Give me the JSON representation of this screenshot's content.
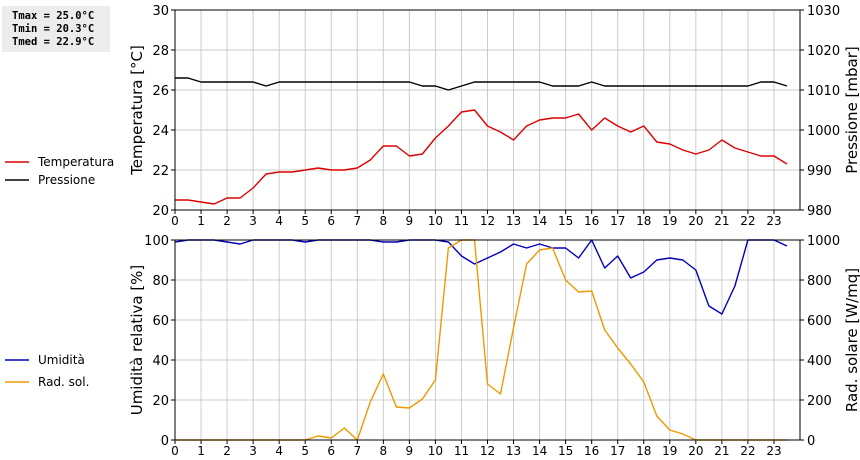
{
  "stats": {
    "tmax": "Tmax = 25.0°C",
    "tmin": "Tmin = 20.3°C",
    "tmed": "Tmed = 22.9°C"
  },
  "colors": {
    "temperature": "#dd0000",
    "pressure": "#000000",
    "humidity": "#0000bb",
    "radiation": "#ee9900",
    "grid": "#cccccc",
    "frame": "#000000"
  },
  "chart_data": [
    {
      "type": "line",
      "x_ticks": [
        "0",
        "1",
        "2",
        "3",
        "4",
        "5",
        "6",
        "7",
        "8",
        "9",
        "10",
        "11",
        "12",
        "13",
        "14",
        "15",
        "16",
        "17",
        "18",
        "19",
        "20",
        "21",
        "22",
        "23"
      ],
      "xlim": [
        0,
        24
      ],
      "ylabel": "Temperatura [°C]",
      "ylim": [
        20,
        30
      ],
      "y_ticks": [
        "20",
        "22",
        "24",
        "26",
        "28",
        "30"
      ],
      "ylabel_right": "Pressione [mbar]",
      "ylim_right": [
        980,
        1030
      ],
      "y_ticks_right": [
        "980",
        "990",
        "1000",
        "1010",
        "1020",
        "1030"
      ],
      "grid": true,
      "legend_position": "left",
      "series": [
        {
          "name": "Temperatura",
          "axis": "left",
          "color": "#dd0000",
          "x": [
            0,
            0.5,
            1,
            1.5,
            2,
            2.5,
            3,
            3.5,
            4,
            4.5,
            5,
            5.5,
            6,
            6.5,
            7,
            7.5,
            8,
            8.5,
            9,
            9.5,
            10,
            10.5,
            11,
            11.5,
            12,
            12.5,
            13,
            13.5,
            14,
            14.5,
            15,
            15.5,
            16,
            16.5,
            17,
            17.5,
            18,
            18.5,
            19,
            19.5,
            20,
            20.5,
            21,
            21.5,
            22,
            22.5,
            23,
            23.5
          ],
          "values": [
            20.5,
            20.5,
            20.4,
            20.3,
            20.6,
            20.6,
            21.1,
            21.8,
            21.9,
            21.9,
            22.0,
            22.1,
            22.0,
            22.0,
            22.1,
            22.5,
            23.2,
            23.2,
            22.7,
            22.8,
            23.6,
            24.2,
            24.9,
            25.0,
            24.2,
            23.9,
            23.5,
            24.2,
            24.5,
            24.6,
            24.6,
            24.8,
            24.0,
            24.6,
            24.2,
            23.9,
            24.2,
            23.4,
            23.3,
            23.0,
            22.8,
            23.0,
            23.5,
            23.1,
            22.9,
            22.7,
            22.7,
            22.3
          ]
        },
        {
          "name": "Pressione",
          "axis": "right",
          "color": "#000000",
          "x": [
            0,
            0.5,
            1,
            1.5,
            2,
            2.5,
            3,
            3.5,
            4,
            4.5,
            5,
            5.5,
            6,
            6.5,
            7,
            7.5,
            8,
            8.5,
            9,
            9.5,
            10,
            10.5,
            11,
            11.5,
            12,
            12.5,
            13,
            13.5,
            14,
            14.5,
            15,
            15.5,
            16,
            16.5,
            17,
            17.5,
            18,
            18.5,
            19,
            19.5,
            20,
            20.5,
            21,
            21.5,
            22,
            22.5,
            23,
            23.5
          ],
          "values": [
            1013,
            1013,
            1012,
            1012,
            1012,
            1012,
            1012,
            1011,
            1012,
            1012,
            1012,
            1012,
            1012,
            1012,
            1012,
            1012,
            1012,
            1012,
            1012,
            1011,
            1011,
            1010,
            1011,
            1012,
            1012,
            1012,
            1012,
            1012,
            1012,
            1011,
            1011,
            1011,
            1012,
            1011,
            1011,
            1011,
            1011,
            1011,
            1011,
            1011,
            1011,
            1011,
            1011,
            1011,
            1011,
            1012,
            1012,
            1011
          ]
        }
      ]
    },
    {
      "type": "line",
      "x_ticks": [
        "0",
        "1",
        "2",
        "3",
        "4",
        "5",
        "6",
        "7",
        "8",
        "9",
        "10",
        "11",
        "12",
        "13",
        "14",
        "15",
        "16",
        "17",
        "18",
        "19",
        "20",
        "21",
        "22",
        "23"
      ],
      "xlim": [
        0,
        24
      ],
      "ylabel": "Umidità relativa [%]",
      "ylim": [
        0,
        100
      ],
      "y_ticks": [
        "0",
        "20",
        "40",
        "60",
        "80",
        "100"
      ],
      "ylabel_right": "Rad. solare [W/mq]",
      "ylim_right": [
        0,
        1000
      ],
      "y_ticks_right": [
        "0",
        "200",
        "400",
        "600",
        "800",
        "1000"
      ],
      "grid": true,
      "legend_position": "left",
      "series": [
        {
          "name": "Umidità",
          "axis": "left",
          "color": "#0000bb",
          "x": [
            0,
            0.5,
            1,
            1.5,
            2,
            2.5,
            3,
            3.5,
            4,
            4.5,
            5,
            5.5,
            6,
            6.5,
            7,
            7.5,
            8,
            8.5,
            9,
            9.5,
            10,
            10.5,
            11,
            11.5,
            12,
            12.5,
            13,
            13.5,
            14,
            14.5,
            15,
            15.5,
            16,
            16.5,
            17,
            17.5,
            18,
            18.5,
            19,
            19.5,
            20,
            20.5,
            21,
            21.5,
            22,
            22.5,
            23,
            23.5
          ],
          "values": [
            99,
            100,
            100,
            100,
            99,
            98,
            100,
            100,
            100,
            100,
            99,
            100,
            100,
            100,
            100,
            100,
            99,
            99,
            100,
            100,
            100,
            99,
            92,
            88,
            91,
            94,
            98,
            96,
            98,
            96,
            96,
            91,
            100,
            86,
            92,
            81,
            84,
            90,
            91,
            90,
            85,
            67,
            63,
            77,
            100,
            100,
            100,
            97
          ]
        },
        {
          "name": "Rad. sol.",
          "axis": "right",
          "color": "#ee9900",
          "x": [
            0,
            0.5,
            1,
            1.5,
            2,
            2.5,
            3,
            3.5,
            4,
            4.5,
            5,
            5.5,
            6,
            6.5,
            7,
            7.5,
            8,
            8.5,
            9,
            9.5,
            10,
            10.5,
            11,
            11.5,
            12,
            12.5,
            13,
            13.5,
            14,
            14.5,
            15,
            15.5,
            16,
            16.5,
            17,
            17.5,
            18,
            18.5,
            19,
            19.5,
            20,
            20.5,
            21,
            21.5,
            22,
            22.5,
            23,
            23.5
          ],
          "values": [
            0,
            0,
            0,
            0,
            0,
            0,
            0,
            0,
            0,
            0,
            0,
            20,
            10,
            60,
            0,
            190,
            330,
            165,
            160,
            205,
            300,
            960,
            1000,
            1000,
            280,
            230,
            560,
            880,
            950,
            960,
            800,
            740,
            745,
            550,
            460,
            380,
            290,
            120,
            50,
            30,
            0,
            0,
            0,
            0,
            0,
            0,
            0,
            0
          ]
        }
      ]
    }
  ]
}
